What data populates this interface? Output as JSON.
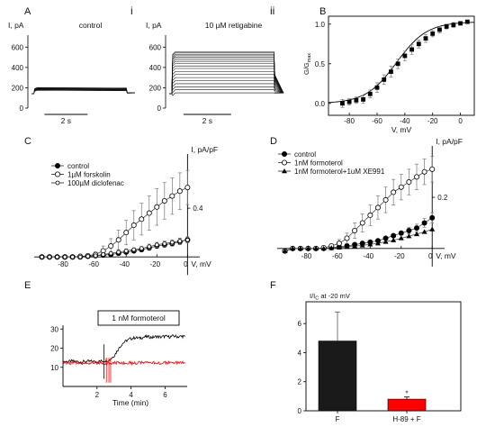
{
  "chart_data": [
    {
      "panel": "A",
      "type": "line",
      "subpanels": [
        {
          "roman": "i",
          "title": "control",
          "ylabel": "I, pA",
          "yticks": [
            "0",
            "200",
            "400",
            "600"
          ],
          "ylim": [
            0,
            700
          ],
          "xlim": [
            0,
            3.6
          ],
          "scalebar_label": "2 s",
          "step_current_pA": [
            175,
            178,
            181,
            184,
            187,
            190,
            193,
            196,
            199,
            202
          ],
          "baseline_pA": 140
        },
        {
          "roman": "ii",
          "title": "10 µM retigabine",
          "ylabel": "I, pA",
          "yticks": [
            "0",
            "200",
            "400",
            "600"
          ],
          "ylim": [
            0,
            700
          ],
          "xlim": [
            0,
            3.6
          ],
          "scalebar_label": "2 s",
          "step_current_pA": [
            150,
            180,
            210,
            240,
            270,
            300,
            330,
            360,
            390,
            415,
            440,
            460,
            480,
            500,
            515,
            530,
            545,
            555
          ],
          "baseline_pA": 140
        }
      ]
    },
    {
      "panel": "B",
      "type": "scatter",
      "ylabel": "G/Gmax",
      "xlabel": "V, mV",
      "xticks": [
        -80,
        -60,
        -40,
        -20,
        0
      ],
      "yticks": [
        0.0,
        0.5,
        1.0
      ],
      "xlim": [
        -95,
        10
      ],
      "ylim": [
        -0.15,
        1.1
      ],
      "x": [
        -85,
        -80,
        -75,
        -70,
        -65,
        -60,
        -55,
        -50,
        -45,
        -40,
        -35,
        -30,
        -25,
        -20,
        -15,
        -10,
        -5,
        0,
        5
      ],
      "y": [
        0.0,
        0.02,
        0.04,
        0.05,
        0.12,
        0.2,
        0.3,
        0.4,
        0.5,
        0.6,
        0.68,
        0.75,
        0.82,
        0.88,
        0.93,
        0.97,
        0.99,
        1.01,
        1.03
      ],
      "err": [
        0.05,
        0.04,
        0.04,
        0.05,
        0.05,
        0.06,
        0.06,
        0.07,
        0.06,
        0.06,
        0.06,
        0.05,
        0.05,
        0.04,
        0.04,
        0.03,
        0.03,
        0.02,
        0.02
      ]
    },
    {
      "panel": "C",
      "type": "line",
      "ylabel": "I, pA/pF",
      "xlabel": "V, mV",
      "xticks": [
        -80,
        -60,
        -40,
        -20,
        0
      ],
      "ytick": "0.4",
      "xlim": [
        -100,
        8
      ],
      "ylim": [
        -0.05,
        0.8
      ],
      "legend": "top-left",
      "series": [
        {
          "name": "control",
          "marker": "filled-circle",
          "x": [
            -95,
            -90,
            -85,
            -80,
            -75,
            -70,
            -65,
            -60,
            -55,
            -50,
            -45,
            -40,
            -35,
            -30,
            -25,
            -20,
            -15,
            -10,
            -5,
            0
          ],
          "y": [
            0.0,
            0.0,
            0.0,
            0.0,
            0.0,
            0.0,
            0.005,
            0.01,
            0.015,
            0.02,
            0.03,
            0.04,
            0.05,
            0.06,
            0.075,
            0.09,
            0.1,
            0.11,
            0.125,
            0.14
          ],
          "err": [
            0.01,
            0.01,
            0.01,
            0.01,
            0.01,
            0.01,
            0.01,
            0.01,
            0.01,
            0.01,
            0.01,
            0.01,
            0.015,
            0.015,
            0.02,
            0.02,
            0.02,
            0.02,
            0.025,
            0.025
          ]
        },
        {
          "name": "1µM forskolin",
          "marker": "open-circle",
          "x": [
            -95,
            -90,
            -85,
            -80,
            -75,
            -70,
            -65,
            -60,
            -55,
            -50,
            -45,
            -40,
            -35,
            -30,
            -25,
            -20,
            -15,
            -10,
            -5,
            0
          ],
          "y": [
            0.0,
            0.0,
            0.0,
            0.0,
            0.0,
            0.005,
            0.01,
            0.02,
            0.05,
            0.09,
            0.14,
            0.2,
            0.26,
            0.31,
            0.36,
            0.41,
            0.46,
            0.5,
            0.54,
            0.57
          ],
          "err": [
            0.01,
            0.01,
            0.01,
            0.01,
            0.01,
            0.01,
            0.01,
            0.02,
            0.04,
            0.06,
            0.08,
            0.1,
            0.12,
            0.13,
            0.14,
            0.15,
            0.15,
            0.15,
            0.15,
            0.14
          ]
        },
        {
          "name": "100µM diclofenac",
          "marker": "open-circle-small",
          "x": [
            -95,
            -90,
            -85,
            -80,
            -75,
            -70,
            -65,
            -60,
            -55,
            -50,
            -45,
            -40,
            -35,
            -30,
            -25,
            -20,
            -15,
            -10,
            -5,
            0
          ],
          "y": [
            0.0,
            0.0,
            0.0,
            0.0,
            0.0,
            0.0,
            0.005,
            0.01,
            0.02,
            0.03,
            0.04,
            0.05,
            0.06,
            0.07,
            0.085,
            0.1,
            0.11,
            0.12,
            0.13,
            0.14
          ],
          "err": [
            0.01,
            0.01,
            0.01,
            0.01,
            0.01,
            0.01,
            0.01,
            0.01,
            0.01,
            0.01,
            0.01,
            0.015,
            0.015,
            0.015,
            0.02,
            0.02,
            0.02,
            0.02,
            0.025,
            0.025
          ]
        }
      ]
    },
    {
      "panel": "D",
      "type": "line",
      "ylabel": "I, pA/pF",
      "xlabel": "V, mV",
      "xticks": [
        -80,
        -60,
        -40,
        -20,
        0
      ],
      "ytick": "0.2",
      "xlim": [
        -100,
        8
      ],
      "ylim": [
        -0.05,
        0.38
      ],
      "legend": "top-left",
      "series": [
        {
          "name": "control",
          "marker": "filled-circle",
          "x": [
            -95,
            -90,
            -85,
            -80,
            -75,
            -70,
            -65,
            -60,
            -55,
            -50,
            -45,
            -40,
            -35,
            -30,
            -25,
            -20,
            -15,
            -10,
            -5,
            0
          ],
          "y": [
            -0.01,
            0.0,
            0.0,
            0.0,
            0.0,
            0.0,
            0.003,
            0.006,
            0.01,
            0.015,
            0.02,
            0.025,
            0.03,
            0.04,
            0.05,
            0.06,
            0.07,
            0.08,
            0.1,
            0.12
          ],
          "err": [
            0.006,
            0.005,
            0.005,
            0.005,
            0.005,
            0.005,
            0.005,
            0.005,
            0.006,
            0.006,
            0.007,
            0.008,
            0.008,
            0.01,
            0.01,
            0.012,
            0.013,
            0.015,
            0.017,
            0.02
          ]
        },
        {
          "name": "1nM formoterol",
          "marker": "open-circle",
          "x": [
            -95,
            -90,
            -85,
            -80,
            -75,
            -70,
            -65,
            -60,
            -55,
            -50,
            -45,
            -40,
            -35,
            -30,
            -25,
            -20,
            -15,
            -10,
            -5,
            0
          ],
          "y": [
            -0.01,
            0.0,
            0.0,
            0.0,
            0.0,
            0.003,
            0.01,
            0.02,
            0.04,
            0.07,
            0.1,
            0.13,
            0.16,
            0.19,
            0.22,
            0.24,
            0.26,
            0.28,
            0.3,
            0.31
          ],
          "err": [
            0.006,
            0.005,
            0.005,
            0.005,
            0.005,
            0.006,
            0.01,
            0.015,
            0.02,
            0.03,
            0.035,
            0.04,
            0.045,
            0.05,
            0.05,
            0.05,
            0.05,
            0.05,
            0.05,
            0.05
          ]
        },
        {
          "name": "1nM formoterol+1uM XE991",
          "marker": "filled-triangle",
          "x": [
            -95,
            -90,
            -85,
            -80,
            -75,
            -70,
            -65,
            -60,
            -55,
            -50,
            -45,
            -40,
            -35,
            -30,
            -25,
            -20,
            -15,
            -10,
            -5,
            0
          ],
          "y": [
            -0.01,
            0.0,
            0.0,
            0.0,
            0.0,
            0.0,
            0.002,
            0.004,
            0.006,
            0.009,
            0.012,
            0.016,
            0.02,
            0.026,
            0.032,
            0.04,
            0.048,
            0.056,
            0.065,
            0.075
          ],
          "err": [
            0.005,
            0.004,
            0.004,
            0.004,
            0.004,
            0.004,
            0.004,
            0.004,
            0.005,
            0.005,
            0.006,
            0.006,
            0.007,
            0.008,
            0.008,
            0.009,
            0.01,
            0.01,
            0.011,
            0.012
          ]
        }
      ]
    },
    {
      "panel": "E",
      "type": "line",
      "label": "1 nM formoterol",
      "xlabel": "Time (min)",
      "xticks": [
        2,
        4,
        6
      ],
      "yticks": [
        10,
        20,
        30
      ],
      "xlim": [
        0,
        7.3
      ],
      "ylim": [
        0,
        32
      ],
      "colors": {
        "black_trace": "#000000",
        "red_trace": "#ff0000"
      },
      "series": [
        {
          "color": "#000000",
          "x": [
            0.0,
            0.25,
            0.5,
            0.75,
            1.0,
            1.25,
            1.5,
            1.75,
            2.0,
            2.25,
            2.5,
            2.75,
            3.0,
            3.25,
            3.5,
            3.75,
            4.0,
            4.25,
            4.5,
            4.75,
            5.0,
            5.25,
            5.5,
            5.75,
            6.0,
            6.25,
            6.5,
            6.75,
            7.0,
            7.2
          ],
          "y": [
            13,
            13,
            13.2,
            13,
            12.8,
            13,
            13.1,
            13,
            13,
            13.2,
            13.5,
            14,
            16,
            19.5,
            22.5,
            24,
            25,
            25.5,
            25.2,
            25.8,
            26,
            25.6,
            26.1,
            25.8,
            26.2,
            25.9,
            26.3,
            26,
            26.2,
            26
          ]
        },
        {
          "color": "#ff0000",
          "x": [
            0.0,
            0.25,
            0.5,
            0.75,
            1.0,
            1.25,
            1.5,
            1.75,
            2.0,
            2.25,
            2.5,
            2.75,
            3.0,
            3.25,
            3.5,
            3.75,
            4.0,
            4.25,
            4.5,
            4.75,
            5.0,
            5.25,
            5.5,
            5.75,
            6.0,
            6.25,
            6.5,
            6.75,
            7.0,
            7.2
          ],
          "y": [
            12,
            12.5,
            12,
            12.4,
            12.1,
            12.3,
            12,
            12.6,
            12.2,
            12.5,
            12.1,
            12.4,
            12.2,
            12.6,
            12.1,
            12.5,
            12.3,
            12.2,
            12.6,
            12.1,
            12.4,
            12.2,
            12.5,
            12.1,
            12.4,
            12.3,
            12.5,
            12.2,
            12.4,
            12.3
          ]
        }
      ],
      "artifacts_min": [
        2.4,
        2.55,
        2.7,
        2.8
      ]
    },
    {
      "panel": "F",
      "type": "bar",
      "title": "I/Ic at -20 mV",
      "categories": [
        "F",
        "H-89 + F"
      ],
      "values": [
        4.8,
        0.8
      ],
      "errors": [
        2.0,
        0.15
      ],
      "yticks": [
        0,
        2,
        4,
        6
      ],
      "ylim": [
        0,
        7.5
      ],
      "colors": [
        "#1a1a1a",
        "#ff0000"
      ],
      "annotation": "*"
    }
  ],
  "labels": {
    "panel_A": "A",
    "panel_B": "B",
    "panel_C": "C",
    "panel_D": "D",
    "panel_E": "E",
    "panel_F": "F",
    "sub_i": "i",
    "sub_ii": "ii",
    "gmax_numer": "G/G",
    "gmax_sub": "max",
    "ic_numer": "I/I",
    "ic_sub": "C",
    "ic_rest": " at -20 mV"
  }
}
